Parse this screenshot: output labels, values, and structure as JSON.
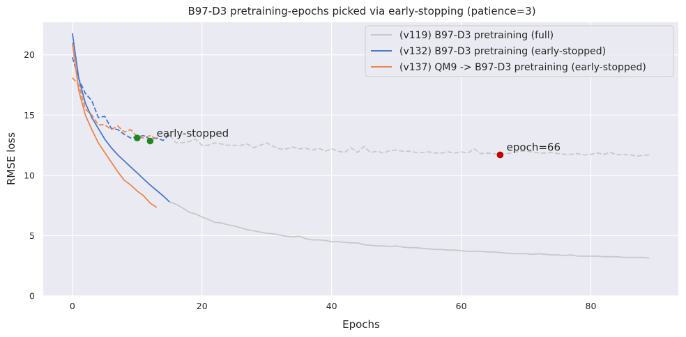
{
  "chart_data": {
    "type": "line",
    "title": "B97-D3 pretraining-epochs picked via early-stopping (patience=3)",
    "xlabel": "Epochs",
    "ylabel": "RMSE loss",
    "xlim": [
      -4.5,
      93.5
    ],
    "ylim": [
      0,
      22.7
    ],
    "xticks": [
      0,
      20,
      40,
      60,
      80
    ],
    "yticks": [
      0,
      5,
      10,
      15,
      20
    ],
    "grid": true,
    "legend_position": "top-right",
    "series": [
      {
        "name": "(v119) B97-D3 pretraining (full)",
        "color": "#c8c8c8",
        "train_x": [
          15,
          16,
          17,
          18,
          19,
          20,
          21,
          22,
          23,
          24,
          25,
          26,
          27,
          28,
          29,
          30,
          31,
          32,
          33,
          34,
          35,
          36,
          37,
          38,
          39,
          40,
          41,
          42,
          43,
          44,
          45,
          46,
          47,
          48,
          49,
          50,
          51,
          52,
          53,
          54,
          55,
          56,
          57,
          58,
          59,
          60,
          61,
          62,
          63,
          64,
          65,
          66,
          67,
          68,
          69,
          70,
          71,
          72,
          73,
          74,
          75,
          76,
          77,
          78,
          79,
          80,
          81,
          82,
          83,
          84,
          85,
          86,
          87,
          88,
          89
        ],
        "train_y": [
          7.8,
          7.6,
          7.3,
          6.95,
          6.8,
          6.55,
          6.35,
          6.1,
          6.05,
          5.9,
          5.8,
          5.65,
          5.5,
          5.4,
          5.3,
          5.2,
          5.15,
          5.05,
          4.95,
          4.9,
          4.95,
          4.75,
          4.65,
          4.65,
          4.6,
          4.5,
          4.5,
          4.45,
          4.4,
          4.4,
          4.25,
          4.2,
          4.15,
          4.15,
          4.1,
          4.15,
          4.05,
          4.0,
          4.0,
          3.95,
          3.9,
          3.85,
          3.85,
          3.8,
          3.8,
          3.75,
          3.7,
          3.7,
          3.7,
          3.65,
          3.65,
          3.6,
          3.55,
          3.5,
          3.5,
          3.5,
          3.45,
          3.5,
          3.45,
          3.4,
          3.4,
          3.35,
          3.4,
          3.3,
          3.3,
          3.3,
          3.3,
          3.25,
          3.25,
          3.25,
          3.2,
          3.2,
          3.2,
          3.2,
          3.15
        ],
        "val_x": [
          15,
          16,
          17,
          18,
          19,
          20,
          21,
          22,
          23,
          24,
          25,
          26,
          27,
          28,
          29,
          30,
          31,
          32,
          33,
          34,
          35,
          36,
          37,
          38,
          39,
          40,
          41,
          42,
          43,
          44,
          45,
          46,
          47,
          48,
          49,
          50,
          51,
          52,
          53,
          54,
          55,
          56,
          57,
          58,
          59,
          60,
          61,
          62,
          63,
          64,
          65,
          66,
          67,
          68,
          69,
          70,
          71,
          72,
          73,
          74,
          75,
          76,
          77,
          78,
          79,
          80,
          81,
          82,
          83,
          84,
          85,
          86,
          87,
          88,
          89
        ],
        "val_y": [
          13.3,
          12.7,
          12.7,
          12.8,
          13.0,
          12.5,
          12.5,
          12.7,
          12.6,
          12.5,
          12.5,
          12.5,
          12.6,
          12.3,
          12.5,
          12.7,
          12.4,
          12.2,
          12.2,
          12.35,
          12.2,
          12.25,
          12.1,
          12.25,
          12.0,
          12.2,
          12.0,
          11.9,
          12.3,
          11.9,
          12.4,
          11.9,
          12.0,
          11.85,
          12.05,
          12.1,
          12.0,
          12.0,
          11.9,
          11.9,
          11.95,
          11.85,
          11.85,
          11.95,
          11.85,
          11.95,
          11.85,
          12.2,
          11.8,
          11.85,
          11.8,
          11.7,
          11.8,
          11.9,
          12.0,
          12.0,
          11.95,
          11.85,
          11.85,
          11.9,
          11.8,
          11.75,
          11.75,
          11.8,
          11.7,
          11.75,
          11.85,
          11.75,
          11.9,
          11.7,
          11.75,
          11.7,
          11.6,
          11.65,
          11.7
        ]
      },
      {
        "name": "(v132) B97-D3 pretraining (early-stopped)",
        "color": "#4878d0",
        "train_x": [
          0,
          1,
          2,
          3,
          4,
          5,
          6,
          7,
          8,
          9,
          10,
          11,
          12,
          13,
          14,
          15
        ],
        "train_y": [
          21.8,
          18.0,
          16.0,
          14.8,
          13.9,
          13.0,
          12.3,
          11.7,
          11.2,
          10.7,
          10.2,
          9.7,
          9.2,
          8.75,
          8.3,
          7.8
        ],
        "val_x": [
          0,
          1,
          2,
          3,
          4,
          5,
          6,
          7,
          8,
          9,
          10,
          11,
          12,
          13,
          14,
          15
        ],
        "val_y": [
          19.8,
          18.0,
          16.8,
          16.2,
          14.8,
          14.9,
          13.9,
          13.8,
          13.4,
          13.1,
          13.2,
          13.3,
          13.0,
          13.1,
          12.9,
          13.4
        ]
      },
      {
        "name": "(v137) QM9 -> B97-D3 pretraining (early-stopped)",
        "color": "#ee854a",
        "train_x": [
          0,
          1,
          2,
          3,
          4,
          5,
          6,
          7,
          8,
          9,
          10,
          11,
          12,
          13
        ],
        "train_y": [
          21.0,
          17.0,
          15.0,
          13.8,
          12.7,
          11.9,
          11.1,
          10.3,
          9.6,
          9.2,
          8.7,
          8.3,
          7.7,
          7.35
        ],
        "val_x": [
          0,
          1,
          2,
          3,
          4,
          5,
          6,
          7,
          8,
          9,
          10,
          11,
          12,
          13
        ],
        "val_y": [
          18.1,
          17.5,
          15.5,
          15.0,
          14.2,
          14.2,
          13.8,
          14.1,
          13.6,
          13.8,
          13.2,
          13.1,
          13.3,
          13.0
        ]
      }
    ],
    "markers": [
      {
        "x": 10,
        "y": 13.1,
        "color": "#1b8a1b"
      },
      {
        "x": 12,
        "y": 12.85,
        "color": "#1b8a1b"
      },
      {
        "x": 66,
        "y": 11.7,
        "color": "#c00000"
      }
    ],
    "annotations": [
      {
        "text": "early-stopped",
        "x": 13,
        "y": 13.2
      },
      {
        "text": "epoch=66",
        "x": 67,
        "y": 12.05
      }
    ]
  }
}
